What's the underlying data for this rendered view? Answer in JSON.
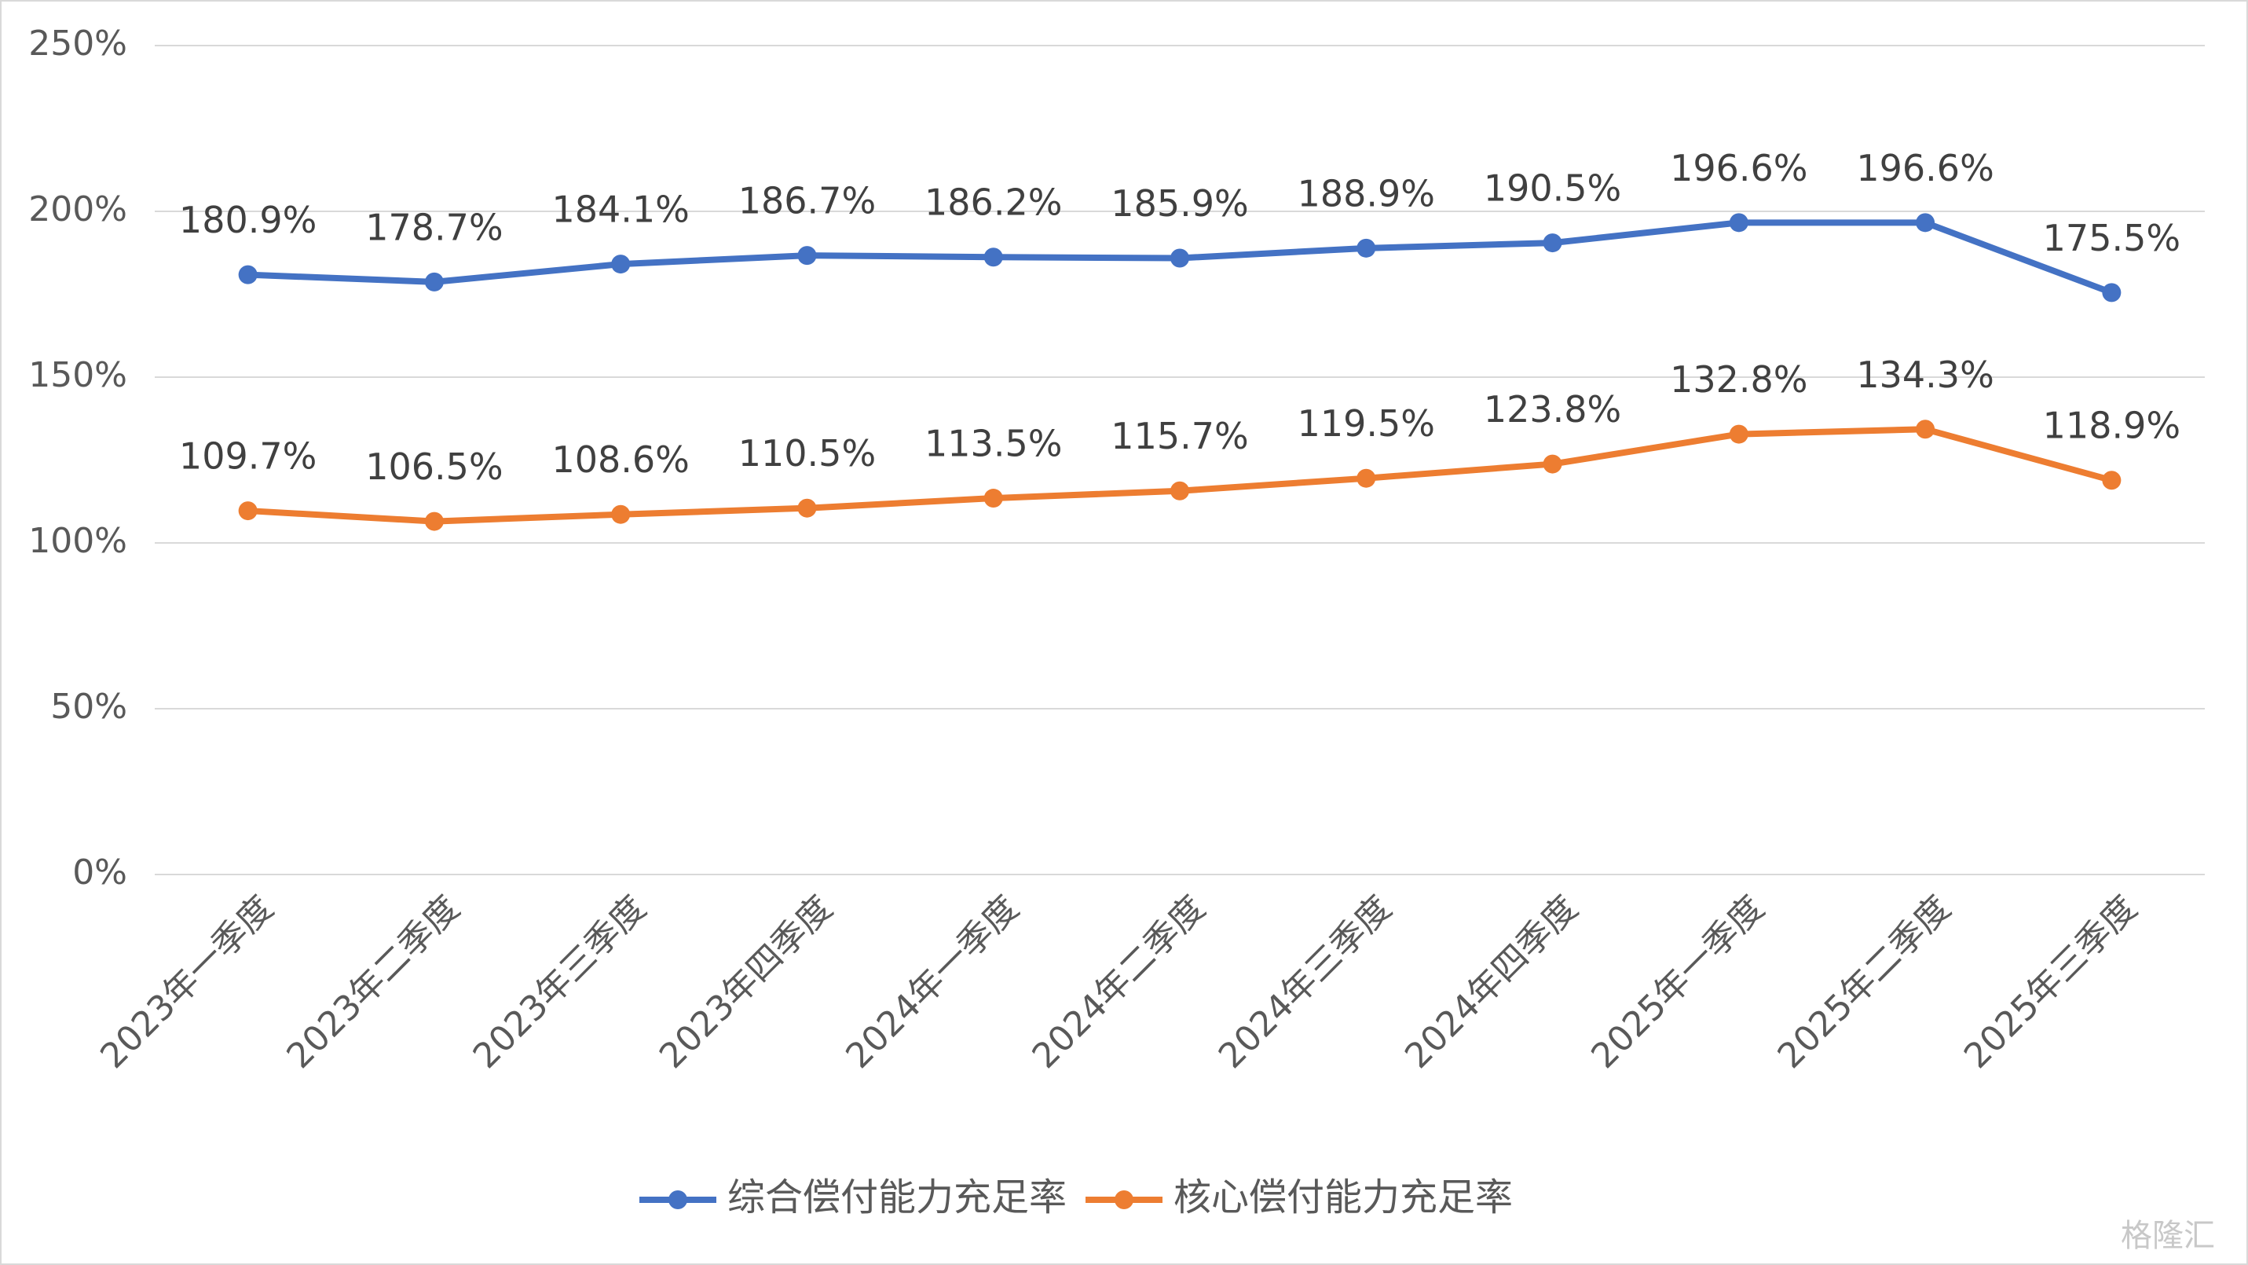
{
  "chart_data": {
    "type": "line",
    "categories": [
      "2023年一季度",
      "2023年二季度",
      "2023年三季度",
      "2023年四季度",
      "2024年一季度",
      "2024年二季度",
      "2024年三季度",
      "2024年四季度",
      "2025年一季度",
      "2025年二季度",
      "2025年三季度"
    ],
    "series": [
      {
        "name": "综合偿付能力充足率",
        "color": "#4472c4",
        "values": [
          180.9,
          178.7,
          184.1,
          186.7,
          186.2,
          185.9,
          188.9,
          190.5,
          196.6,
          196.6,
          175.5
        ],
        "value_labels": [
          "180.9%",
          "178.7%",
          "184.1%",
          "186.7%",
          "186.2%",
          "185.9%",
          "188.9%",
          "190.5%",
          "196.6%",
          "196.6%",
          "175.5%"
        ]
      },
      {
        "name": "核心偿付能力充足率",
        "color": "#ed7d31",
        "values": [
          109.7,
          106.5,
          108.6,
          110.5,
          113.5,
          115.7,
          119.5,
          123.8,
          132.8,
          134.3,
          118.9
        ],
        "value_labels": [
          "109.7%",
          "106.5%",
          "108.6%",
          "110.5%",
          "113.5%",
          "115.7%",
          "119.5%",
          "123.8%",
          "132.8%",
          "134.3%",
          "118.9%"
        ]
      }
    ],
    "ylim": [
      0,
      250
    ],
    "yticks": [
      {
        "value": 0,
        "label": "0%"
      },
      {
        "value": 50,
        "label": "50%"
      },
      {
        "value": 100,
        "label": "100%"
      },
      {
        "value": 150,
        "label": "150%"
      },
      {
        "value": 200,
        "label": "200%"
      },
      {
        "value": 250,
        "label": "250%"
      }
    ],
    "grid": true,
    "legend": "bottom"
  },
  "watermark": "格隆汇"
}
